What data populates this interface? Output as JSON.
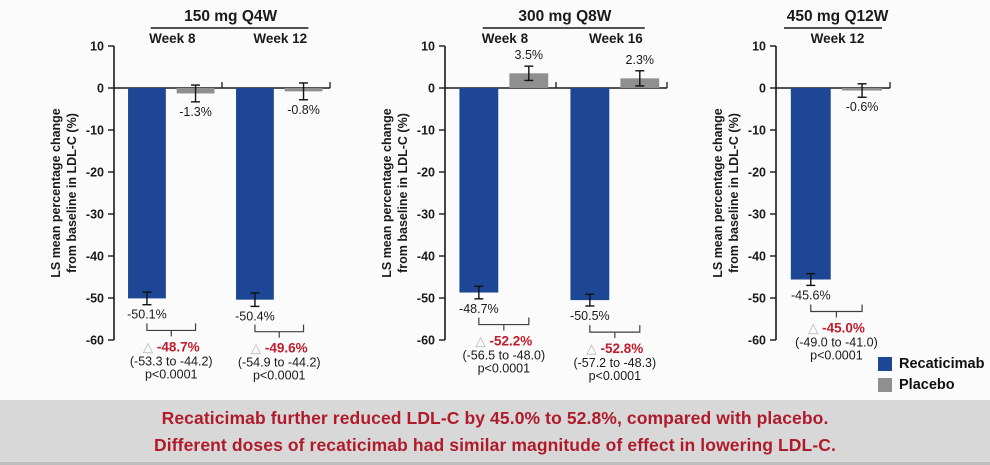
{
  "page": {
    "background": "#fbfbfb"
  },
  "banner": {
    "line1": "Recaticimab further reduced LDL-C by 45.0% to 52.8%, compared with placebo.",
    "line2": "Different doses of recaticimab had similar magnitude of effect in lowering LDL-C.",
    "text_color": "#b01b2b",
    "bg_color": "#d8d8d8"
  },
  "legend": {
    "items": [
      {
        "label": "Recaticimab",
        "color": "#1d4795"
      },
      {
        "label": "Placebo",
        "color": "#8f8f8f"
      }
    ]
  },
  "chart_data": {
    "type": "bar",
    "ylabel_line1": "LS mean percentage change",
    "ylabel_line2": "from baseline in LDL-C (%)",
    "ylim": [
      -60,
      10
    ],
    "yticks": [
      10,
      0,
      -10,
      -20,
      -30,
      -40,
      -50,
      -60
    ],
    "diff_triangle": "△",
    "diff_color": "#bf1c2c",
    "series": [
      {
        "name": "Recaticimab",
        "color": "#1d4795"
      },
      {
        "name": "Placebo",
        "color": "#8f8f8f"
      }
    ],
    "panels": [
      {
        "dose": "150 mg Q4W",
        "groups": [
          {
            "week": "Week 8",
            "recaticimab": -50.1,
            "recaticimab_label": "-50.1%",
            "recaticimab_err": 1.5,
            "placebo": -1.3,
            "placebo_label": "-1.3%",
            "placebo_err": 2.0,
            "diff": "-48.7%",
            "ci": "(-53.3 to -44.2)",
            "p": "p<0.0001"
          },
          {
            "week": "Week 12",
            "recaticimab": -50.4,
            "recaticimab_label": "-50.4%",
            "recaticimab_err": 1.6,
            "placebo": -0.8,
            "placebo_label": "-0.8%",
            "placebo_err": 2.0,
            "diff": "-49.6%",
            "ci": "(-54.9 to -44.2)",
            "p": "p<0.0001"
          }
        ]
      },
      {
        "dose": "300 mg Q8W",
        "groups": [
          {
            "week": "Week 8",
            "recaticimab": -48.7,
            "recaticimab_label": "-48.7%",
            "recaticimab_err": 1.5,
            "placebo": 3.5,
            "placebo_label": "3.5%",
            "placebo_err": 1.7,
            "diff": "-52.2%",
            "ci": "(-56.5 to -48.0)",
            "p": "p<0.0001"
          },
          {
            "week": "Week 16",
            "recaticimab": -50.5,
            "recaticimab_label": "-50.5%",
            "recaticimab_err": 1.4,
            "placebo": 2.3,
            "placebo_label": "2.3%",
            "placebo_err": 1.8,
            "diff": "-52.8%",
            "ci": "(-57.2 to -48.3)",
            "p": "p<0.0001"
          }
        ]
      },
      {
        "dose": "450 mg Q12W",
        "groups": [
          {
            "week": "Week 12",
            "recaticimab": -45.6,
            "recaticimab_label": "-45.6%",
            "recaticimab_err": 1.4,
            "placebo": -0.6,
            "placebo_label": "-0.6%",
            "placebo_err": 1.6,
            "diff": "-45.0%",
            "ci": "(-49.0 to -41.0)",
            "p": "p<0.0001"
          }
        ]
      }
    ]
  }
}
